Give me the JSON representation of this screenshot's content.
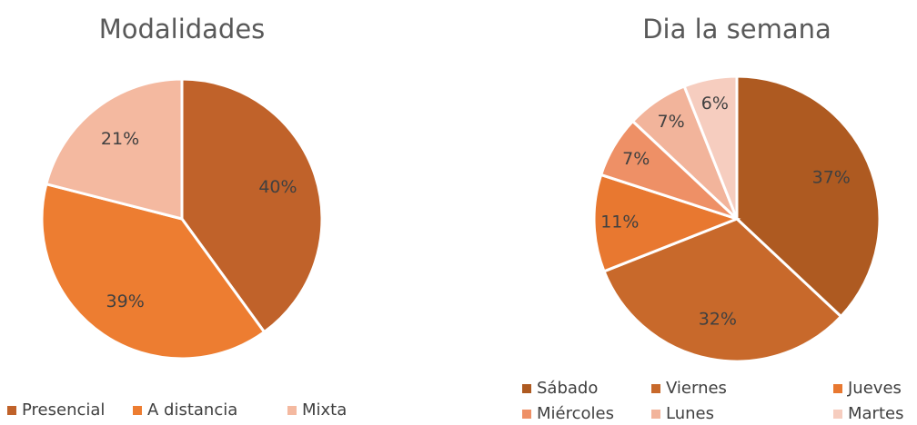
{
  "chart_data": [
    {
      "type": "pie",
      "title": "Modalidades",
      "categories": [
        "Presencial",
        "A distancia",
        "Mixta"
      ],
      "values": [
        40,
        39,
        21
      ],
      "value_labels": [
        "40%",
        "39%",
        "21%"
      ],
      "colors": [
        "#c0622a",
        "#ed7d31",
        "#f4b9a0"
      ],
      "legend": "bottom"
    },
    {
      "type": "pie",
      "title": "Dia la semana",
      "categories": [
        "Sábado",
        "Viernes",
        "Jueves",
        "Miércoles",
        "Lunes",
        "Martes"
      ],
      "values": [
        37,
        32,
        11,
        7,
        7,
        6
      ],
      "value_labels": [
        "37%",
        "32%",
        "11%",
        "7%",
        "7%",
        "6%"
      ],
      "colors": [
        "#ae5a21",
        "#c8692b",
        "#e87830",
        "#ee9066",
        "#f2b49b",
        "#f6cdbf"
      ],
      "legend": "bottom"
    }
  ]
}
